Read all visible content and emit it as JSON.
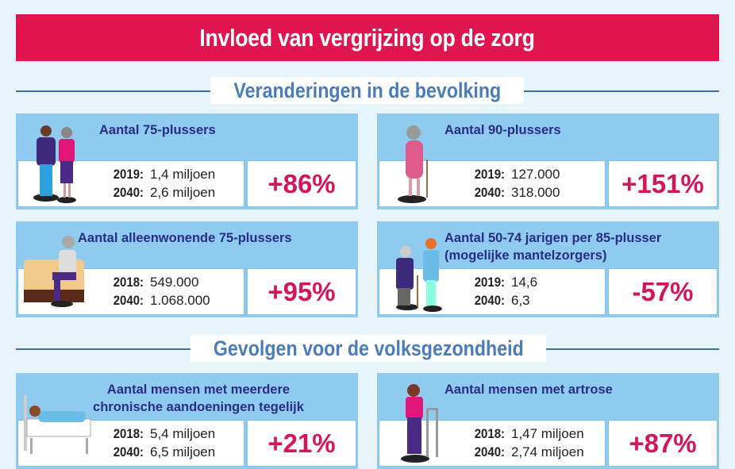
{
  "title": "Invloed van vergrijzing op de zorg",
  "sections": [
    {
      "title": "Veranderingen in de bevolking"
    },
    {
      "title": "Gevolgen voor de volksgezondheid"
    }
  ],
  "cards": [
    {
      "title": "Aantal 75-plussers",
      "rows": [
        {
          "year": "2019:",
          "value": "1,4 miljoen"
        },
        {
          "year": "2040:",
          "value": "2,6 miljoen"
        }
      ],
      "change": "+86%",
      "icon": "elderly-couple-icon"
    },
    {
      "title": "Aantal 90-plussers",
      "rows": [
        {
          "year": "2019:",
          "value": "127.000"
        },
        {
          "year": "2040:",
          "value": "318.000"
        }
      ],
      "change": "+151%",
      "icon": "elderly-woman-cane-icon"
    },
    {
      "title": "Aantal alleenwonende 75-plussers",
      "rows": [
        {
          "year": "2018:",
          "value": "549.000"
        },
        {
          "year": "2040:",
          "value": "1.068.000"
        }
      ],
      "change": "+95%",
      "icon": "elderly-on-sofa-icon"
    },
    {
      "title": "Aantal 50-74 jarigen per 85-plusser",
      "title2": "(mogelijke mantelzorgers)",
      "rows": [
        {
          "year": "2019:",
          "value": "14,6"
        },
        {
          "year": "2040:",
          "value": "6,3"
        }
      ],
      "change": "-57%",
      "icon": "caregiver-icon"
    },
    {
      "title": "Aantal mensen met meerdere",
      "title2": "chronische aandoeningen tegelijk",
      "rows": [
        {
          "year": "2018:",
          "value": "5,4 miljoen"
        },
        {
          "year": "2040:",
          "value": "6,5 miljoen"
        }
      ],
      "change": "+21%",
      "icon": "hospital-bed-icon"
    },
    {
      "title": "Aantal mensen met artrose",
      "rows": [
        {
          "year": "2018:",
          "value": "1,47 miljoen"
        },
        {
          "year": "2040:",
          "value": "2,74 miljoen"
        }
      ],
      "change": "+87%",
      "icon": "walker-icon"
    }
  ],
  "colors": {
    "title_bg": "#e0154f",
    "section_text": "#4a7db8",
    "card_bg": "#8ecbef",
    "card_title": "#2a2c86",
    "change": "#d5155a",
    "background": "#e7f4fc"
  }
}
